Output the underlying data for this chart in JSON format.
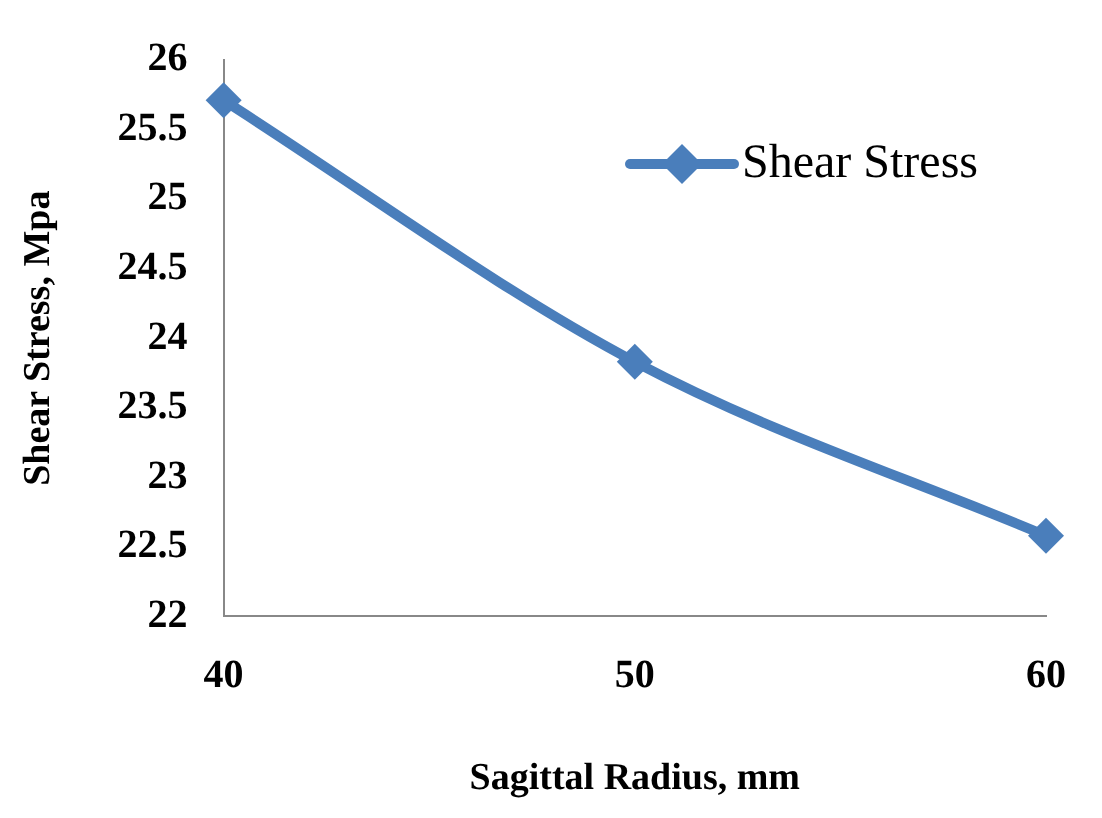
{
  "chart_data": {
    "type": "line",
    "xlabel": "Sagittal Radius, mm",
    "ylabel": "Shear Stress, Mpa",
    "x": [
      40,
      50,
      60
    ],
    "series": [
      {
        "name": "Shear Stress",
        "color": "#4a7ebb",
        "values": [
          25.71,
          23.83,
          22.58
        ]
      }
    ],
    "xlim": [
      40,
      60
    ],
    "xticks": [
      40,
      50,
      60
    ],
    "ylim": [
      22,
      26
    ],
    "yticks": [
      22,
      22.5,
      23,
      23.5,
      24,
      24.5,
      25,
      25.5,
      26
    ],
    "grid": false,
    "legend": "top right",
    "marker": "diamond",
    "line_style": "solid"
  }
}
